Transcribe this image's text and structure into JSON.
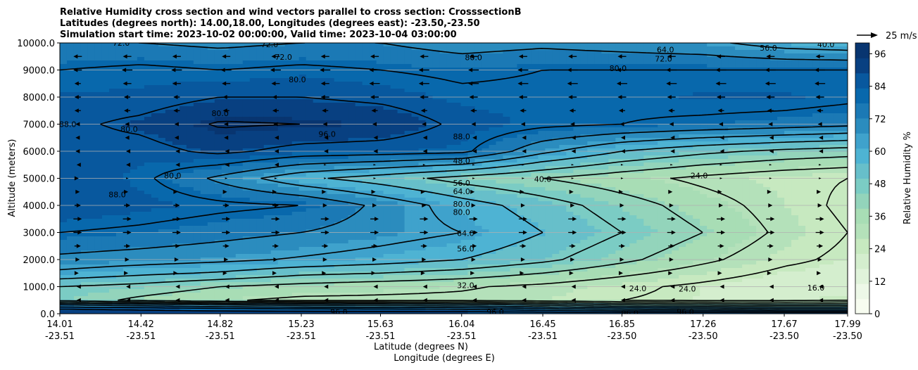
{
  "chart_data": {
    "type": "contour",
    "title_lines": [
      "Relative Humidity cross section and wind vectors parallel to cross section: CrosssectionB",
      "Latitudes (degrees north): 14.00,18.00, Longitudes (degrees east): -23.50,-23.50",
      "Simulation start time: 2023-10-02 00:00:00, Valid time: 2023-10-04 03:00:00"
    ],
    "xlabel_lines": [
      "Latitude (degrees N)",
      "Longitude (degrees E)"
    ],
    "ylabel": "Altitude (meters)",
    "x_ticks": [
      {
        "lat": "14.01",
        "lon": "-23.51",
        "v": 14.01
      },
      {
        "lat": "14.42",
        "lon": "-23.51",
        "v": 14.42
      },
      {
        "lat": "14.82",
        "lon": "-23.51",
        "v": 14.82
      },
      {
        "lat": "15.23",
        "lon": "-23.51",
        "v": 15.23
      },
      {
        "lat": "15.63",
        "lon": "-23.51",
        "v": 15.63
      },
      {
        "lat": "16.04",
        "lon": "-23.51",
        "v": 16.04
      },
      {
        "lat": "16.45",
        "lon": "-23.51",
        "v": 16.45
      },
      {
        "lat": "16.85",
        "lon": "-23.50",
        "v": 16.85
      },
      {
        "lat": "17.26",
        "lon": "-23.50",
        "v": 17.26
      },
      {
        "lat": "17.67",
        "lon": "-23.50",
        "v": 17.67
      },
      {
        "lat": "17.99",
        "lon": "-23.50",
        "v": 17.99
      }
    ],
    "y_ticks": [
      "0.0",
      "1000.0",
      "2000.0",
      "3000.0",
      "4000.0",
      "5000.0",
      "6000.0",
      "7000.0",
      "8000.0",
      "9000.0",
      "10000.0"
    ],
    "xlim": [
      14.01,
      17.99
    ],
    "ylim": [
      0,
      10000
    ],
    "grid": "horizontal",
    "colorbar": {
      "label": "Relative Humidity %",
      "ticks": [
        "0",
        "12",
        "24",
        "36",
        "48",
        "60",
        "72",
        "84",
        "96"
      ],
      "range": [
        0,
        100
      ],
      "colors": [
        "#f7fcf0",
        "#edf8e8",
        "#e0f3db",
        "#d4eece",
        "#c7e9c0",
        "#b4e1ba",
        "#a8ddb5",
        "#93d4bb",
        "#7bccc4",
        "#67bfca",
        "#4eb3d3",
        "#3fa2cc",
        "#2b8cbe",
        "#1b79b5",
        "#0868ac",
        "#08589e",
        "#084081",
        "#083570"
      ]
    },
    "quiver_key": {
      "label": "25 m/s"
    },
    "rh_field": {
      "x": [
        14.01,
        14.42,
        14.82,
        15.23,
        15.63,
        16.04,
        16.45,
        16.85,
        17.26,
        17.67,
        17.99
      ],
      "y": [
        0,
        250,
        500,
        1000,
        1500,
        2000,
        3000,
        4000,
        5000,
        6000,
        7000,
        8000,
        9000,
        10000
      ],
      "values": [
        [
          95,
          95,
          95,
          95,
          95,
          95,
          95,
          95,
          95,
          95,
          95
        ],
        [
          85,
          82,
          78,
          75,
          74,
          72,
          66,
          60,
          58,
          55,
          55
        ],
        [
          45,
          38,
          33,
          30,
          30,
          30,
          28,
          24,
          22,
          22,
          24
        ],
        [
          48,
          45,
          40,
          37,
          35,
          33,
          30,
          26,
          22,
          18,
          18
        ],
        [
          62,
          58,
          55,
          50,
          48,
          45,
          40,
          34,
          28,
          22,
          20
        ],
        [
          70,
          68,
          66,
          63,
          60,
          56,
          50,
          42,
          34,
          26,
          22
        ],
        [
          80,
          78,
          75,
          72,
          68,
          64,
          56,
          48,
          40,
          30,
          24
        ],
        [
          88,
          85,
          82,
          80,
          70,
          60,
          52,
          44,
          36,
          28,
          22
        ],
        [
          88,
          82,
          70,
          58,
          52,
          45,
          40,
          35,
          30,
          26,
          24
        ],
        [
          85,
          85,
          90,
          85,
          84,
          82,
          66,
          56,
          50,
          46,
          44
        ],
        [
          86,
          90,
          97,
          96,
          94,
          86,
          82,
          80,
          78,
          76,
          74
        ],
        [
          84,
          84,
          88,
          88,
          86,
          82,
          82,
          82,
          84,
          84,
          82
        ],
        [
          80,
          82,
          80,
          82,
          80,
          78,
          80,
          80,
          80,
          80,
          80
        ],
        [
          72,
          72,
          70,
          72,
          72,
          68,
          70,
          68,
          66,
          60,
          58
        ]
      ]
    },
    "contour_levels": [
      16,
      24,
      32,
      40,
      48,
      56,
      64,
      72,
      80,
      88,
      96
    ],
    "contour_labels": [
      {
        "text": "40.0",
        "x": 16.45,
        "y": 4980
      },
      {
        "text": "48.0",
        "x": 16.04,
        "y": 5650
      },
      {
        "text": "56.0",
        "x": 16.04,
        "y": 4830
      },
      {
        "text": "64.0",
        "x": 16.04,
        "y": 4520
      },
      {
        "text": "80.0",
        "x": 16.04,
        "y": 4050
      },
      {
        "text": "80.0",
        "x": 16.04,
        "y": 3750
      },
      {
        "text": "64.0",
        "x": 16.06,
        "y": 2980
      },
      {
        "text": "56.0",
        "x": 16.06,
        "y": 2400
      },
      {
        "text": "32.0",
        "x": 16.06,
        "y": 1050
      },
      {
        "text": "88.0",
        "x": 16.04,
        "y": 6550
      },
      {
        "text": "96.0",
        "x": 15.36,
        "y": 6630
      },
      {
        "text": "24.0",
        "x": 17.24,
        "y": 5100
      },
      {
        "text": "24.0",
        "x": 16.93,
        "y": 930
      },
      {
        "text": "24.0",
        "x": 17.18,
        "y": 920
      },
      {
        "text": "16.0",
        "x": 17.83,
        "y": 960
      },
      {
        "text": "80.0",
        "x": 16.1,
        "y": 9470
      },
      {
        "text": "80.0",
        "x": 16.83,
        "y": 9060
      },
      {
        "text": "72.0",
        "x": 17.06,
        "y": 9420
      },
      {
        "text": "64.0",
        "x": 17.07,
        "y": 9750
      },
      {
        "text": "56.0",
        "x": 17.59,
        "y": 9820
      },
      {
        "text": "40.0",
        "x": 17.88,
        "y": 9950
      },
      {
        "text": "72.0",
        "x": 15.14,
        "y": 9480
      },
      {
        "text": "80.0",
        "x": 15.21,
        "y": 8650
      },
      {
        "text": "80.0",
        "x": 14.82,
        "y": 7400
      },
      {
        "text": "80.0",
        "x": 14.36,
        "y": 6820
      },
      {
        "text": "80.0",
        "x": 14.58,
        "y": 5100
      },
      {
        "text": "88.0",
        "x": 14.3,
        "y": 4400
      },
      {
        "text": "88.0",
        "x": 14.05,
        "y": 7000
      },
      {
        "text": "72.0",
        "x": 14.32,
        "y": 10000
      },
      {
        "text": "72.0",
        "x": 15.07,
        "y": 9950
      },
      {
        "text": "96.0",
        "x": 16.89,
        "y": 30
      },
      {
        "text": "96.0",
        "x": 17.17,
        "y": 80
      },
      {
        "text": "96.0",
        "x": 15.42,
        "y": 60
      },
      {
        "text": "96.0",
        "x": 16.21,
        "y": 80
      }
    ],
    "wind_u": {
      "x": [
        14.1,
        14.35,
        14.6,
        14.85,
        15.1,
        15.35,
        15.6,
        15.85,
        16.1,
        16.35,
        16.6,
        16.85,
        17.1,
        17.35,
        17.6,
        17.85
      ],
      "y": [
        9500,
        9000,
        8500,
        8000,
        7500,
        7000,
        6500,
        6000,
        5500,
        5000,
        4500,
        4000,
        3500,
        3000,
        2500,
        2000,
        1500,
        1000,
        500
      ],
      "values": [
        [
          -4,
          -4,
          -4,
          -4,
          -4,
          -4,
          -4,
          -4,
          -4,
          -4,
          -4,
          -4,
          -4,
          -4,
          -4,
          -4
        ],
        [
          -4,
          -5,
          -5,
          -5,
          -5,
          -5,
          -5,
          -5,
          -5,
          -5,
          -5,
          -5,
          -5,
          -5,
          -5,
          -5
        ],
        [
          -3,
          -4,
          -4,
          -4,
          -4,
          -4,
          -5,
          -5,
          -5,
          -5,
          -5,
          -5,
          -5,
          -5,
          -5,
          -5
        ],
        [
          -3,
          -3,
          -3,
          -3,
          -3,
          -4,
          -4,
          -4,
          -4,
          -4,
          -4,
          -4,
          -4,
          -4,
          -4,
          -4
        ],
        [
          -3,
          -3,
          -3,
          -3,
          -3,
          -3,
          -3,
          -3,
          -3,
          -3,
          -3,
          -3,
          -3,
          -3,
          -3,
          -3
        ],
        [
          -2,
          -2,
          -2,
          -2,
          -2,
          -2,
          -2,
          -2,
          -2,
          -2,
          -2,
          -2,
          -2,
          -2,
          -2,
          -2
        ],
        [
          -2,
          -2,
          -2,
          -2,
          -1,
          -1,
          -1,
          -1,
          -1,
          -1,
          -1,
          -1,
          -1,
          -1,
          -1,
          -1
        ],
        [
          -2,
          -1,
          -1,
          -1,
          -1,
          -1,
          -1,
          -1,
          -1,
          -1,
          -1,
          -1,
          -1,
          -1,
          -1,
          -1
        ],
        [
          -1,
          -1,
          -1,
          -1,
          -1,
          0.5,
          0.5,
          0.5,
          0.5,
          0.5,
          0.5,
          0.5,
          0.5,
          0.5,
          0.5,
          0.5
        ],
        [
          1,
          0.5,
          0.5,
          0.5,
          0.5,
          0.5,
          0.5,
          0.5,
          0.5,
          0.5,
          0.5,
          0.5,
          0.5,
          0.5,
          0.5,
          0.5
        ],
        [
          2,
          1,
          1,
          1,
          1,
          1,
          1,
          1,
          1,
          1,
          1,
          1,
          1,
          1,
          1,
          1
        ],
        [
          3,
          3,
          3,
          3,
          3,
          2,
          2,
          2,
          2,
          2,
          2,
          2,
          2,
          2,
          2,
          2
        ],
        [
          4,
          4,
          4,
          4,
          4,
          4,
          4,
          4,
          4,
          4,
          4,
          4,
          4,
          4,
          4,
          4
        ],
        [
          4,
          4,
          4,
          4,
          4,
          4,
          4,
          4,
          4,
          4,
          4,
          4,
          4,
          4,
          4,
          4
        ],
        [
          3,
          3,
          3,
          3,
          3,
          3,
          3,
          3,
          3,
          3,
          3,
          3,
          3,
          3,
          3,
          3
        ],
        [
          2,
          2,
          2,
          2,
          2,
          2,
          2,
          2,
          2,
          2,
          2,
          2,
          2,
          2,
          2,
          2
        ],
        [
          1,
          1,
          1,
          1,
          1,
          1,
          1,
          1,
          1,
          1,
          1,
          1,
          1,
          1,
          1,
          1
        ],
        [
          -1,
          -1,
          -1,
          -1,
          -1,
          -1,
          -1,
          -1,
          -1,
          -1,
          -1,
          -1,
          -1,
          -1,
          -1,
          -1
        ],
        [
          -1,
          -1,
          -1,
          -1,
          -1,
          -1,
          -1,
          -1,
          -1,
          -1,
          -1,
          -1,
          -1,
          -1,
          -1,
          -1
        ]
      ]
    }
  }
}
